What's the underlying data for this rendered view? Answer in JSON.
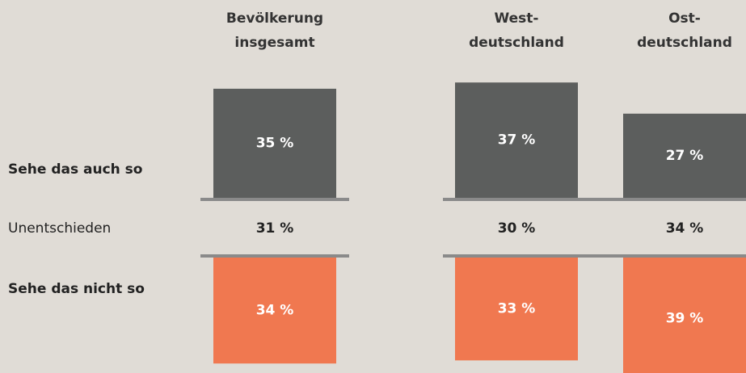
{
  "chart_data": {
    "type": "diverging",
    "categories": [
      "Bevölkerung\ninsgesamt",
      "West-\ndeutschland",
      "Ost-\ndeutschland"
    ],
    "series": [
      {
        "name": "Sehe das auch so",
        "color": "#5c5e5d",
        "values": [
          35,
          37,
          27
        ],
        "value_labels": [
          "35 %",
          "37 %",
          "27 %"
        ]
      },
      {
        "name": "Unentschieden",
        "values": [
          31,
          30,
          34
        ],
        "value_labels": [
          "31 %",
          "30 %",
          "34 %"
        ]
      },
      {
        "name": "Sehe das nicht so",
        "color": "#f07850",
        "values": [
          34,
          33,
          39
        ],
        "value_labels": [
          "34 %",
          "33 %",
          "39 %"
        ]
      }
    ]
  }
}
